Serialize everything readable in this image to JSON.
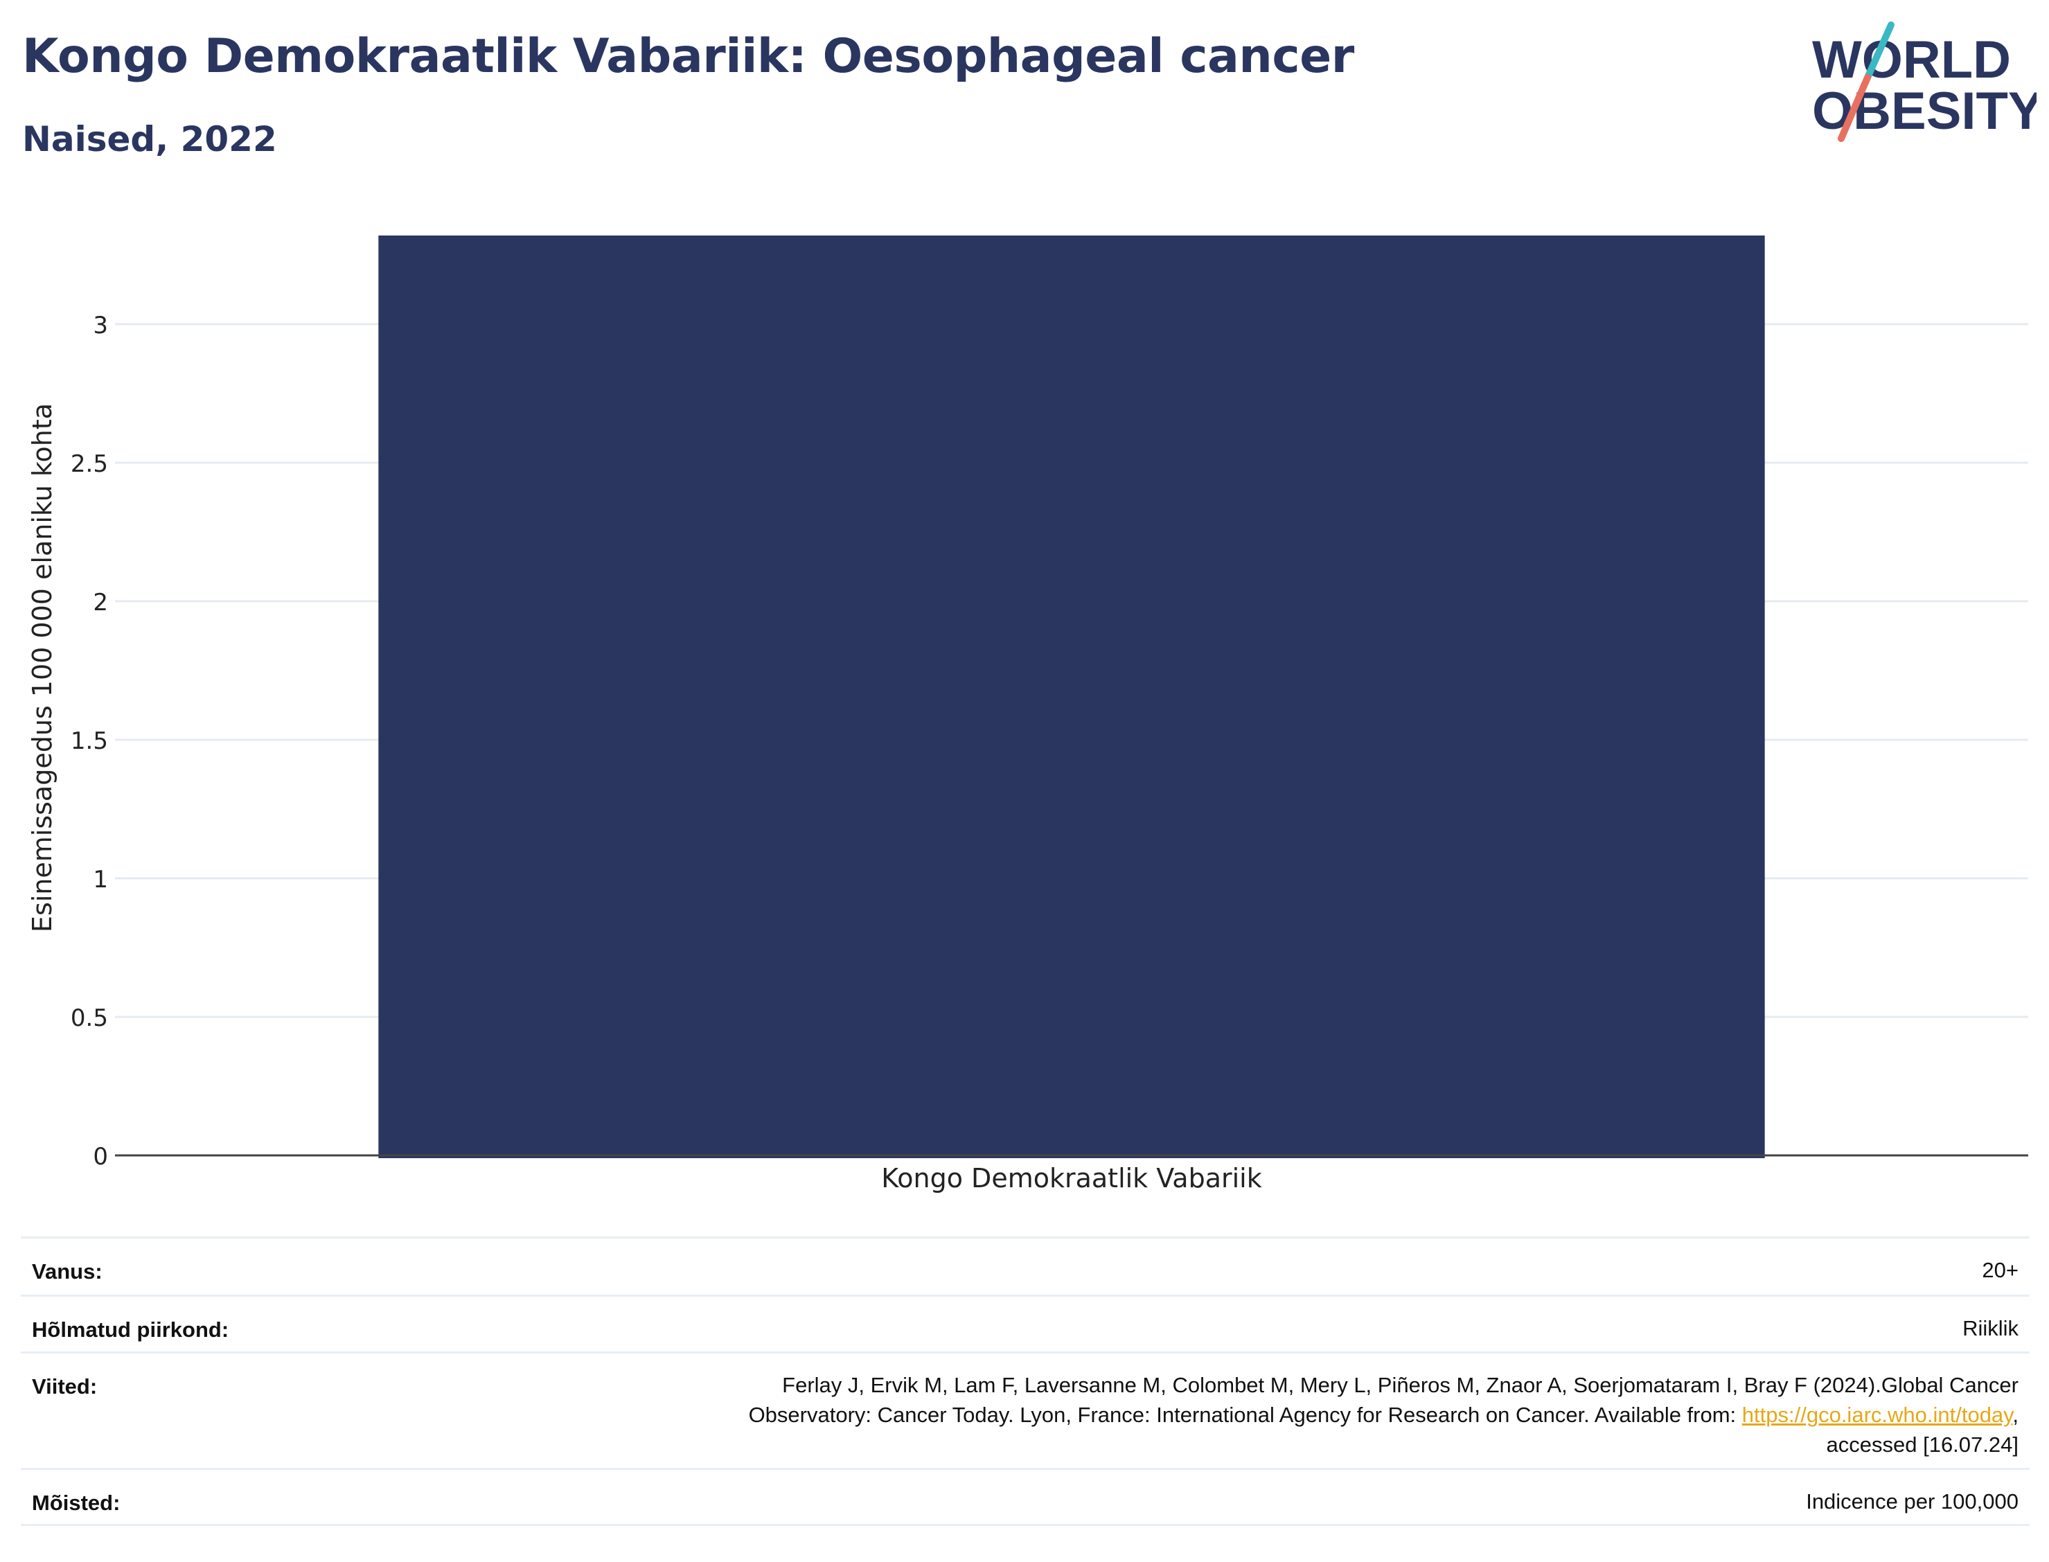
{
  "title": "Kongo Demokraatlik Vabariik: Oesophageal cancer",
  "subtitle": "Naised, 2022",
  "logo": {
    "line1": "WORLD",
    "line2": "OBESITY",
    "colors": {
      "text": "#2a3660",
      "slash_top": "#3bb8c3",
      "slash_bottom": "#e8705f"
    }
  },
  "chart_data": {
    "type": "bar",
    "categories": [
      "Kongo Demokraatlik Vabariik"
    ],
    "values": [
      3.32
    ],
    "title": "",
    "xlabel": "",
    "ylabel": "Esinemissagedus 100 000 elaniku kohta",
    "ylim": [
      0,
      3.32
    ],
    "yticks": [
      0,
      0.5,
      1,
      1.5,
      2,
      2.5,
      3
    ],
    "ytick_labels": [
      "0",
      "0.5",
      "1",
      "1.5",
      "2",
      "2.5",
      "3"
    ],
    "grid": true,
    "bar_color": "#2a3660"
  },
  "meta": {
    "age": {
      "label": "Vanus:",
      "value": "20+"
    },
    "region": {
      "label": "Hõlmatud piirkond:",
      "value": "Riiklik"
    },
    "refs": {
      "label": "Viited:",
      "line1": "Ferlay J, Ervik M, Lam F, Laversanne M, Colombet M, Mery L, Piñeros M, Znaor A, Soerjomataram I, Bray F (2024).Global Cancer",
      "line2_pre": "Observatory: Cancer Today. Lyon, France: International Agency for Research on Cancer. Available from: ",
      "link": "https://gco.iarc.who.int/today",
      "line2_post": ",",
      "line3": "accessed [16.07.24]"
    },
    "definitions": {
      "label": "Mõisted:",
      "value": "Indicence per 100,000"
    }
  }
}
